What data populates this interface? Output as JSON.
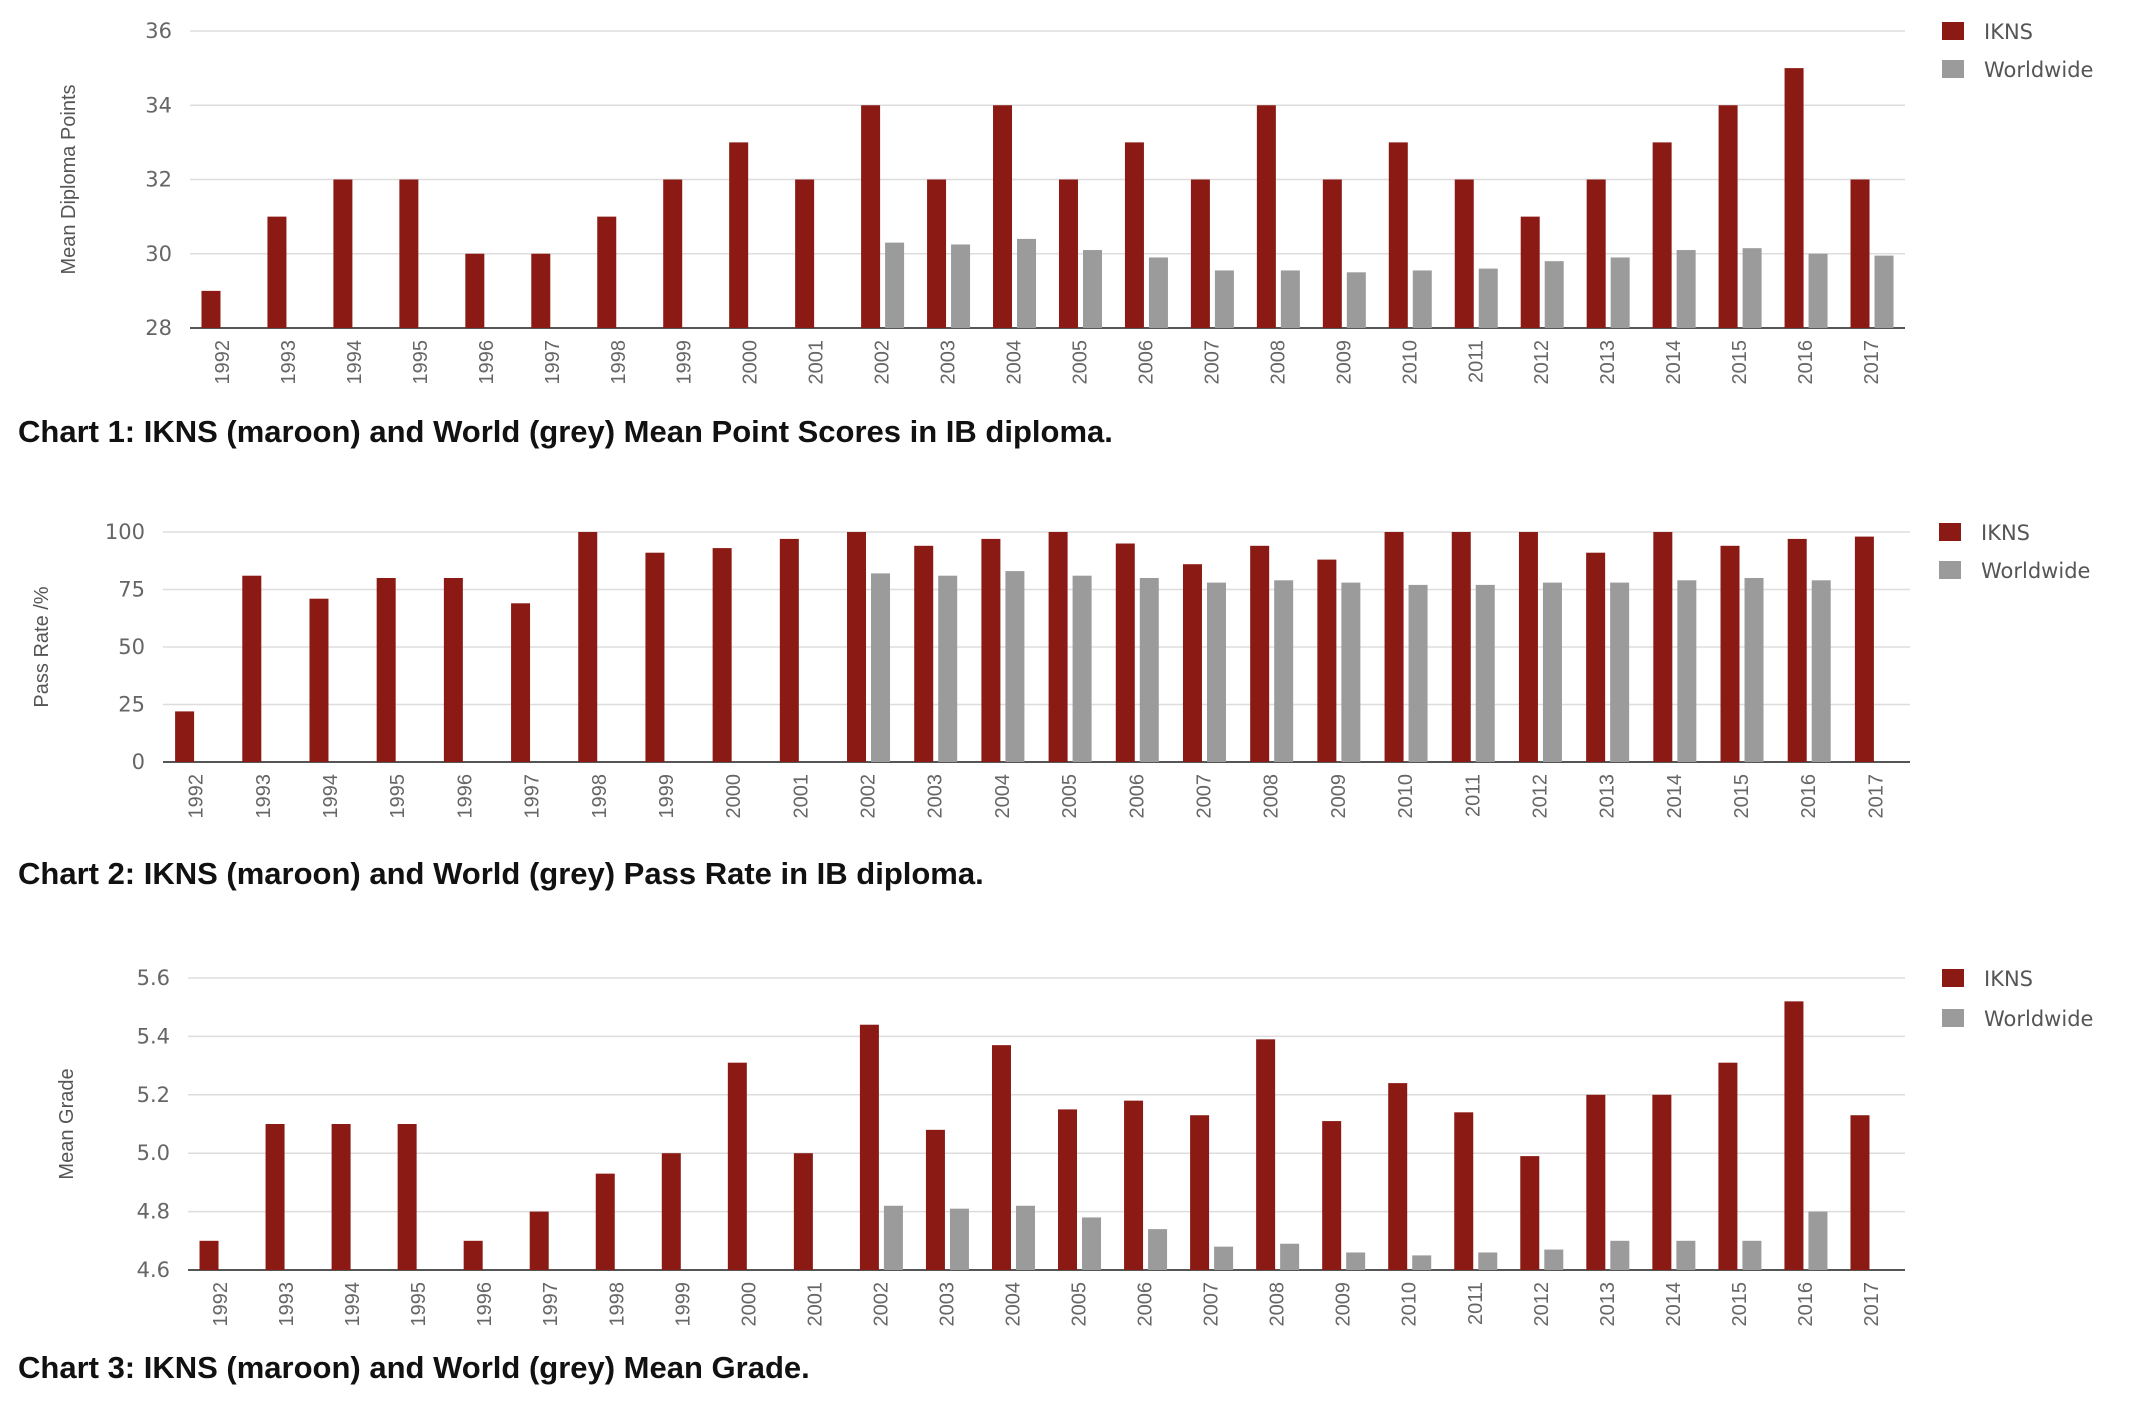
{
  "colors": {
    "ikns": "#8b1a14",
    "worldwide": "#9b9b9b",
    "grid": "#dddddd",
    "axis": "#555555"
  },
  "captions": [
    "Chart 1:  IKNS (maroon) and World (grey) Mean Point Scores in IB diploma.",
    "Chart 2:  IKNS (maroon) and World (grey) Pass Rate in IB diploma.",
    "Chart 3:  IKNS (maroon) and World (grey) Mean Grade."
  ],
  "chart_data": [
    {
      "type": "bar",
      "ylabel": "Mean Diploma Points",
      "ylim": [
        28,
        36
      ],
      "yticks": [
        "28",
        "30",
        "32",
        "34",
        "36"
      ],
      "categories": [
        "1992",
        "1993",
        "1994",
        "1995",
        "1996",
        "1997",
        "1998",
        "1999",
        "2000",
        "2001",
        "2002",
        "2003",
        "2004",
        "2005",
        "2006",
        "2007",
        "2008",
        "2009",
        "2010",
        "2011",
        "2012",
        "2013",
        "2014",
        "2015",
        "2016",
        "2017"
      ],
      "legend_position": "top-right",
      "series": [
        {
          "name": "IKNS",
          "values": [
            29,
            31,
            32,
            32,
            30,
            30,
            31,
            32,
            33,
            32,
            34,
            32,
            34,
            32,
            33,
            32,
            34,
            32,
            33,
            32,
            31,
            32,
            33,
            34,
            35,
            32
          ]
        },
        {
          "name": "Worldwide",
          "values": [
            null,
            null,
            null,
            null,
            null,
            null,
            null,
            null,
            null,
            null,
            30.3,
            30.25,
            30.4,
            30.1,
            29.9,
            29.55,
            29.55,
            29.5,
            29.55,
            29.6,
            29.8,
            29.9,
            30.1,
            30.15,
            30.0,
            29.95
          ]
        }
      ]
    },
    {
      "type": "bar",
      "ylabel": "Pass Rate /%",
      "ylim": [
        0,
        100
      ],
      "yticks": [
        "0",
        "25",
        "50",
        "75",
        "100"
      ],
      "categories": [
        "1992",
        "1993",
        "1994",
        "1995",
        "1996",
        "1997",
        "1998",
        "1999",
        "2000",
        "2001",
        "2002",
        "2003",
        "2004",
        "2005",
        "2006",
        "2007",
        "2008",
        "2009",
        "2010",
        "2011",
        "2012",
        "2013",
        "2014",
        "2015",
        "2016",
        "2017"
      ],
      "legend_position": "top-right",
      "series": [
        {
          "name": "IKNS",
          "values": [
            22,
            81,
            71,
            80,
            80,
            69,
            100,
            91,
            93,
            97,
            100,
            94,
            97,
            100,
            95,
            86,
            94,
            88,
            100,
            100,
            100,
            91,
            100,
            94,
            97,
            98
          ]
        },
        {
          "name": "Worldwide",
          "values": [
            null,
            null,
            null,
            null,
            null,
            null,
            null,
            null,
            null,
            null,
            82,
            81,
            83,
            81,
            80,
            78,
            79,
            78,
            77,
            77,
            78,
            78,
            79,
            80,
            79,
            null
          ]
        }
      ]
    },
    {
      "type": "bar",
      "ylabel": "Mean Grade",
      "ylim": [
        4.6,
        5.6
      ],
      "yticks": [
        "4.6",
        "4.8",
        "5.0",
        "5.2",
        "5.4",
        "5.6"
      ],
      "categories": [
        "1992",
        "1993",
        "1994",
        "1995",
        "1996",
        "1997",
        "1998",
        "1999",
        "2000",
        "2001",
        "2002",
        "2003",
        "2004",
        "2005",
        "2006",
        "2007",
        "2008",
        "2009",
        "2010",
        "2011",
        "2012",
        "2013",
        "2014",
        "2015",
        "2016",
        "2017"
      ],
      "legend_position": "top-right",
      "series": [
        {
          "name": "IKNS",
          "values": [
            4.7,
            5.1,
            5.1,
            5.1,
            4.7,
            4.8,
            4.93,
            5.0,
            5.31,
            5.0,
            5.44,
            5.08,
            5.37,
            5.15,
            5.18,
            5.13,
            5.39,
            5.11,
            5.24,
            5.14,
            4.99,
            5.2,
            5.2,
            5.31,
            5.52,
            5.13
          ]
        },
        {
          "name": "Worldwide",
          "values": [
            null,
            null,
            null,
            null,
            null,
            null,
            null,
            null,
            null,
            null,
            4.82,
            4.81,
            4.82,
            4.78,
            4.74,
            4.68,
            4.69,
            4.66,
            4.65,
            4.66,
            4.67,
            4.7,
            4.7,
            4.7,
            4.8,
            null
          ]
        }
      ]
    }
  ]
}
